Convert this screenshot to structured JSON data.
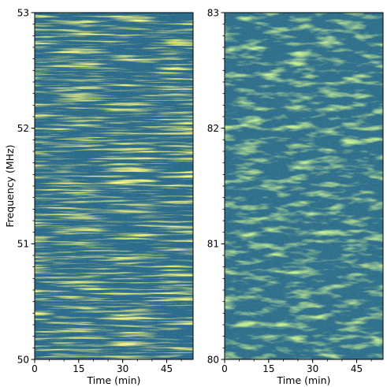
{
  "chart_data": [
    {
      "type": "heatmap",
      "xlabel": "Time (min)",
      "ylabel": "Frequency (MHz)",
      "xlim": [
        0,
        54
      ],
      "ylim": [
        50,
        53
      ],
      "x_ticks": [
        0,
        15,
        30,
        45
      ],
      "y_ticks": [
        50,
        51,
        52,
        53
      ],
      "colormap": "viridis",
      "grid": false
    },
    {
      "type": "heatmap",
      "xlabel": "Time (min)",
      "ylabel": "",
      "xlim": [
        0,
        54
      ],
      "ylim": [
        80,
        83
      ],
      "x_ticks": [
        0,
        15,
        30,
        45
      ],
      "y_ticks": [
        80,
        81,
        82,
        83
      ],
      "colormap": "viridis",
      "grid": false
    }
  ]
}
